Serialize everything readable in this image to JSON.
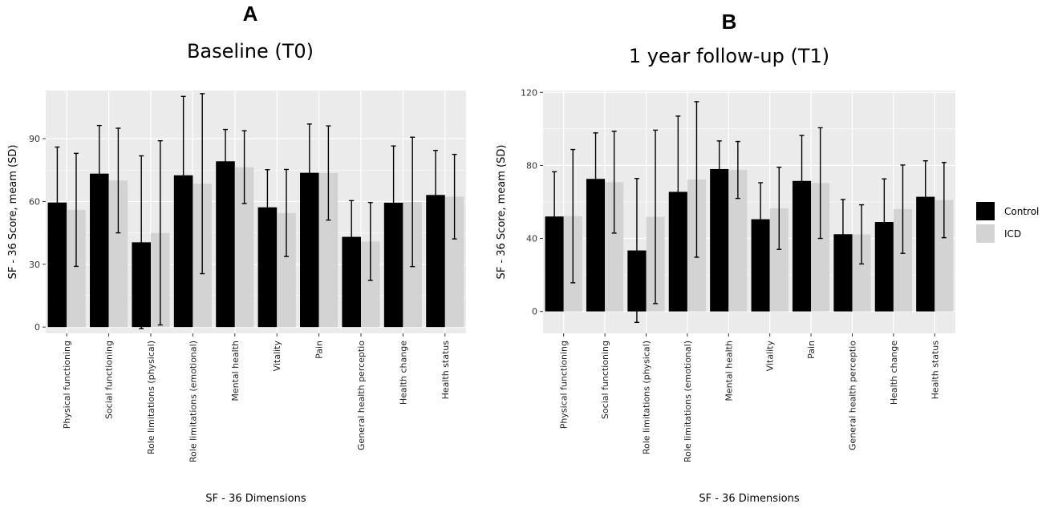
{
  "panels": [
    {
      "letter": "A",
      "title": "Baseline (T0)"
    },
    {
      "letter": "B",
      "title": "1 year follow-up (T1)"
    }
  ],
  "legend": [
    {
      "label": "Control",
      "color": "#000000"
    },
    {
      "label": "ICD",
      "color": "#d3d3d3"
    }
  ],
  "colors": {
    "panel_bg": "#ebebeb",
    "grid": "#ffffff",
    "control": "#000000",
    "icd": "#d3d3d3"
  },
  "chart_data": [
    {
      "type": "bar",
      "title": "Baseline (T0)",
      "xlabel": "SF - 36 Dimensions",
      "ylabel": "SF - 36 Score, meam (SD)",
      "ylim": [
        -3,
        113
      ],
      "yticks": [
        0,
        30,
        60,
        90
      ],
      "grid": true,
      "categories": [
        "Physical functioning",
        "Social functioning",
        "Role limitations (physical)",
        "Role limitations (emotional)",
        "Mental health",
        "Vitality",
        "Pain",
        "General health perceptio",
        "Health change",
        "Health status"
      ],
      "series": [
        {
          "name": "Control",
          "values": [
            59.5,
            73.3,
            40.5,
            72.5,
            79.2,
            57.2,
            73.7,
            43.1,
            59.4,
            63.1
          ],
          "sd": [
            26.5,
            23.0,
            41.3,
            37.7,
            15.2,
            18.0,
            23.3,
            17.3,
            27.1,
            21.3
          ]
        },
        {
          "name": "ICD",
          "values": [
            56.0,
            70.0,
            45.0,
            68.5,
            76.4,
            54.5,
            73.6,
            40.9,
            59.8,
            62.3
          ],
          "sd": [
            27.0,
            25.0,
            44.0,
            43.0,
            17.4,
            20.8,
            22.5,
            18.6,
            30.9,
            20.2
          ]
        }
      ]
    },
    {
      "type": "bar",
      "title": "1 year follow-up (T1)",
      "xlabel": "SF - 36 Dimensions",
      "ylabel": "SF - 36 Score, meam (SD)",
      "ylim": [
        -12,
        121
      ],
      "yticks": [
        0,
        40,
        80,
        120
      ],
      "grid": true,
      "categories": [
        "Physical functioning",
        "Social functioning",
        "Role limitations (physical)",
        "Role limitations (emotional)",
        "Mental health",
        "Vitality",
        "Pain",
        "General health perceptio",
        "Health change",
        "Health status"
      ],
      "series": [
        {
          "name": "Control",
          "values": [
            52.0,
            72.6,
            33.4,
            65.5,
            78.0,
            50.5,
            71.5,
            42.3,
            49.0,
            62.8
          ],
          "sd": [
            24.5,
            25.2,
            39.4,
            41.5,
            15.4,
            20.0,
            24.9,
            19.0,
            23.6,
            19.7
          ]
        },
        {
          "name": "ICD",
          "values": [
            52.2,
            70.8,
            51.8,
            72.3,
            77.5,
            56.5,
            70.3,
            42.2,
            56.0,
            61.0
          ],
          "sd": [
            36.5,
            27.9,
            47.5,
            42.6,
            15.6,
            22.5,
            30.3,
            16.2,
            24.2,
            20.6
          ]
        }
      ]
    }
  ]
}
